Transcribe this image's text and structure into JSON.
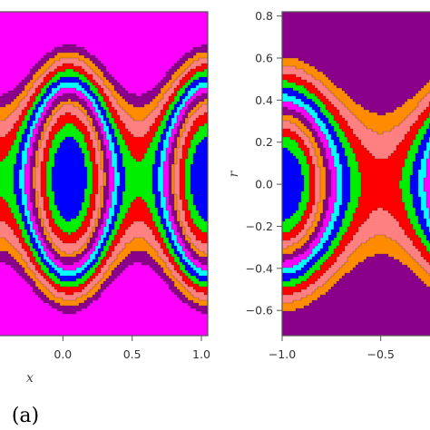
{
  "palette": {
    "blue": "#0000ff",
    "green": "#00ee00",
    "red": "#ff0000",
    "pink": "#ff8080",
    "orange": "#ff8c00",
    "purple": "#8b008b",
    "magenta": "#ff00ff",
    "cyan": "#00ffff",
    "contour_line": "#333333",
    "frame": "#555555"
  },
  "chart_data": [
    {
      "type": "heatmap",
      "subtype": "filled-contour",
      "panel_label": "(a)",
      "xlabel": "x",
      "ylabel": "",
      "xlim": [
        -0.5,
        1.0
      ],
      "ylim": [
        -0.75,
        0.8
      ],
      "x_ticks": [
        {
          "value": 0.0,
          "label": "0.0"
        },
        {
          "value": 0.5,
          "label": "0.5"
        },
        {
          "value": 1.0,
          "label": "1.0"
        }
      ],
      "y_ticks": [],
      "saddle_x": 0.5,
      "center_x": [
        0.0,
        1.0
      ],
      "contour_levels": [
        0.6,
        1.05,
        1.5,
        1.95,
        2.2,
        2.6,
        3.0,
        3.4,
        3.8,
        4.3,
        4.8,
        5.4,
        6.0,
        6.7
      ],
      "level_colors": [
        "blue",
        "green",
        "red",
        "pink",
        "orange",
        "purple",
        "magenta",
        "cyan",
        "blue",
        "green",
        "red",
        "pink",
        "orange",
        "purple",
        "magenta"
      ]
    },
    {
      "type": "heatmap",
      "subtype": "filled-contour",
      "xlabel": "",
      "ylabel": "r",
      "xlim": [
        -1.0,
        -0.25
      ],
      "ylim": [
        -0.72,
        0.82
      ],
      "x_ticks": [
        {
          "value": -1.0,
          "label": "−1.0"
        },
        {
          "value": -0.5,
          "label": "−0.5"
        }
      ],
      "y_ticks": [
        {
          "value": 0.8,
          "label": "0.8"
        },
        {
          "value": 0.6,
          "label": "0.6"
        },
        {
          "value": 0.4,
          "label": "0.4"
        },
        {
          "value": 0.2,
          "label": "0.2"
        },
        {
          "value": 0.0,
          "label": "0.0"
        },
        {
          "value": -0.2,
          "label": "−0.2"
        },
        {
          "value": -0.4,
          "label": "−0.4"
        },
        {
          "value": -0.6,
          "label": "−0.6"
        }
      ],
      "saddle_x": -0.5,
      "center_x": [
        -1.0,
        0.0
      ],
      "contour_levels": [
        0.45,
        0.8,
        1.1,
        1.4,
        1.72,
        2.05,
        2.45,
        2.85,
        3.3,
        3.8,
        4.4,
        5.1,
        5.9
      ],
      "level_colors": [
        "blue",
        "green",
        "red",
        "pink",
        "orange",
        "purple",
        "magenta",
        "cyan",
        "blue",
        "green",
        "red",
        "pink",
        "orange",
        "purple"
      ]
    }
  ]
}
